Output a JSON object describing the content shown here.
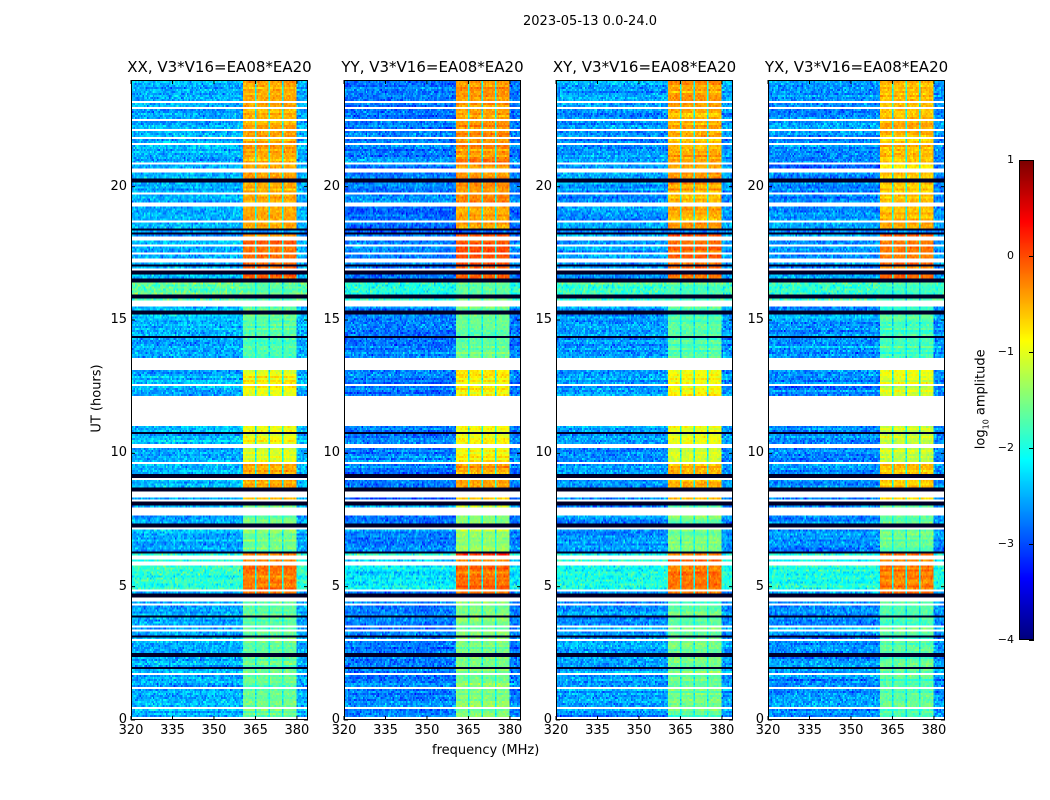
{
  "chart_data": {
    "type": "heatmap",
    "title": "2023-05-13 0.0-24.0",
    "xlabel": "frequency (MHz)",
    "ylabel": "UT (hours)",
    "xlim": [
      320,
      384
    ],
    "ylim": [
      0,
      24
    ],
    "xticks": [
      320,
      335,
      350,
      365,
      380
    ],
    "yticks": [
      0,
      5,
      10,
      15,
      20
    ],
    "panels": [
      {
        "title": "XX, V3*V16=EA08*EA20",
        "band_offset": 0.0,
        "bg_offset": 0.1
      },
      {
        "title": "YY, V3*V16=EA08*EA20",
        "band_offset": 0.1,
        "bg_offset": -0.15
      },
      {
        "title": "XY, V3*V16=EA08*EA20",
        "band_offset": 0.0,
        "bg_offset": 0.0
      },
      {
        "title": "YX, V3*V16=EA08*EA20",
        "band_offset": -0.1,
        "bg_offset": -0.05
      }
    ],
    "colorbar": {
      "label": "log10 amplitude",
      "label_main": "log",
      "label_sub": "10",
      "label_rest": " amplitude",
      "colormap": "jet",
      "range": [
        -4,
        1
      ],
      "ticks": [
        "1",
        "0",
        "−1",
        "−2",
        "−3",
        "−4"
      ],
      "tick_values": [
        1,
        0,
        -1,
        -2,
        -3,
        -4
      ]
    },
    "background_level": -2.6,
    "background_segments": [
      {
        "t": [
          15.6,
          16.5
        ],
        "level": -1.8
      },
      {
        "t": [
          4.8,
          6.2
        ],
        "level": -2.0
      }
    ],
    "rfi_subbands_mhz": [
      [
        360.5,
        365
      ],
      [
        365.5,
        370
      ],
      [
        370.5,
        375
      ],
      [
        375.5,
        380
      ]
    ],
    "rfi_segments": [
      {
        "t": [
          18.4,
          24.0
        ],
        "level": -0.45
      },
      {
        "t": [
          16.6,
          18.2
        ],
        "level": -0.15
      },
      {
        "t": [
          13.5,
          16.6
        ],
        "level": -1.7
      },
      {
        "t": [
          12.15,
          13.2
        ],
        "level": -0.9
      },
      {
        "t": [
          9.6,
          11.0
        ],
        "level": -1.0
      },
      {
        "t": [
          8.2,
          9.6
        ],
        "level": -0.5
      },
      {
        "t": [
          6.3,
          8.2
        ],
        "level": -1.5
      },
      {
        "t": [
          4.65,
          6.2
        ],
        "level": -0.2
      },
      {
        "t": [
          0.0,
          4.65
        ],
        "level": -1.6
      }
    ],
    "no_data_intervals": [
      [
        11.0,
        12.15
      ]
    ],
    "flagged_white_times": [
      23.23,
      22.98,
      22.55,
      22.17,
      21.86,
      21.63,
      20.88,
      20.63,
      19.77,
      19.35,
      18.7,
      18.12,
      18.05,
      17.8,
      17.5,
      17.25,
      16.9,
      15.68,
      15.56,
      13.5,
      13.4,
      13.3,
      13.2,
      12.54,
      10.28,
      9.63,
      9.02,
      8.5,
      8.42,
      8.34,
      8.24,
      7.9,
      7.8,
      7.7,
      7.16,
      6.07,
      5.85,
      4.85,
      4.5,
      4.34,
      3.46,
      3.34,
      2.97,
      1.71,
      1.15,
      0.44,
      0.03
    ],
    "flagged_dark_times": [
      20.25,
      18.4,
      18.29,
      17.04,
      16.8,
      16.5,
      15.9,
      15.3,
      14.35,
      13.55,
      10.78,
      10.34,
      9.15,
      8.65,
      8.6,
      8.15,
      8.07,
      7.72,
      7.28,
      6.24,
      4.65,
      4.59,
      3.84,
      3.11,
      2.4,
      1.9
    ]
  }
}
